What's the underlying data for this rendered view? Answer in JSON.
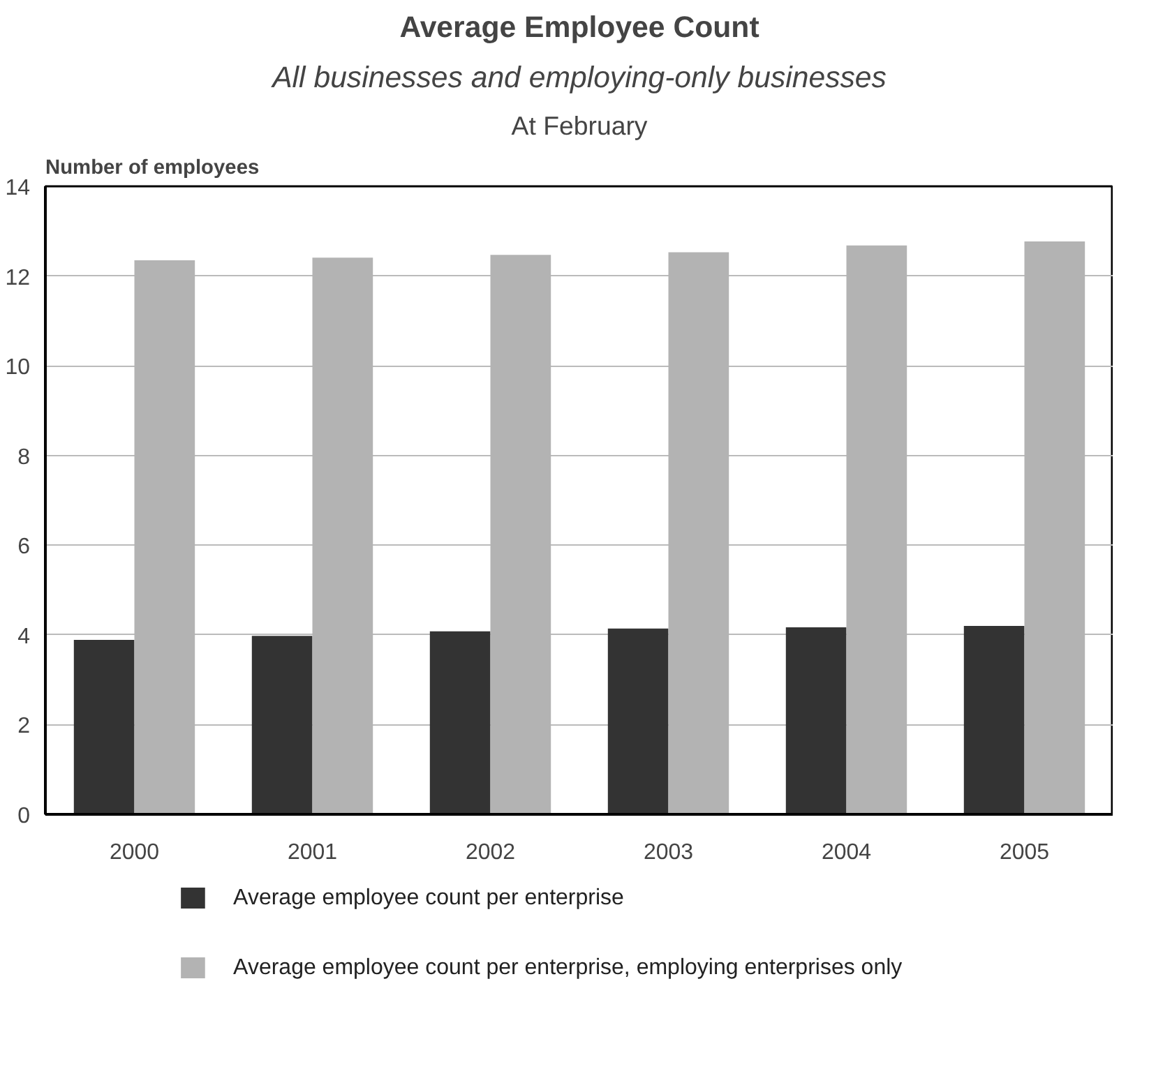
{
  "chart_data": {
    "type": "bar",
    "title": "Average Employee Count",
    "subtitle": "All businesses and employing-only businesses",
    "annotations": [
      "At February"
    ],
    "ylabel": "Number of employees",
    "categories": [
      "2000",
      "2001",
      "2002",
      "2003",
      "2004",
      "2005"
    ],
    "series": [
      {
        "name": "Average employee count per enterprise",
        "color": "#333333",
        "values": [
          3.89,
          3.98,
          4.08,
          4.14,
          4.17,
          4.2
        ]
      },
      {
        "name": "Average employee count per enterprise, employing enterprises only",
        "color": "#b3b3b3",
        "values": [
          12.35,
          12.41,
          12.47,
          12.53,
          12.68,
          12.77
        ]
      }
    ],
    "ylim": [
      0,
      14
    ],
    "yticks": [
      0,
      2,
      4,
      6,
      8,
      10,
      12,
      14
    ],
    "grid": "y",
    "legend": "bottom"
  }
}
